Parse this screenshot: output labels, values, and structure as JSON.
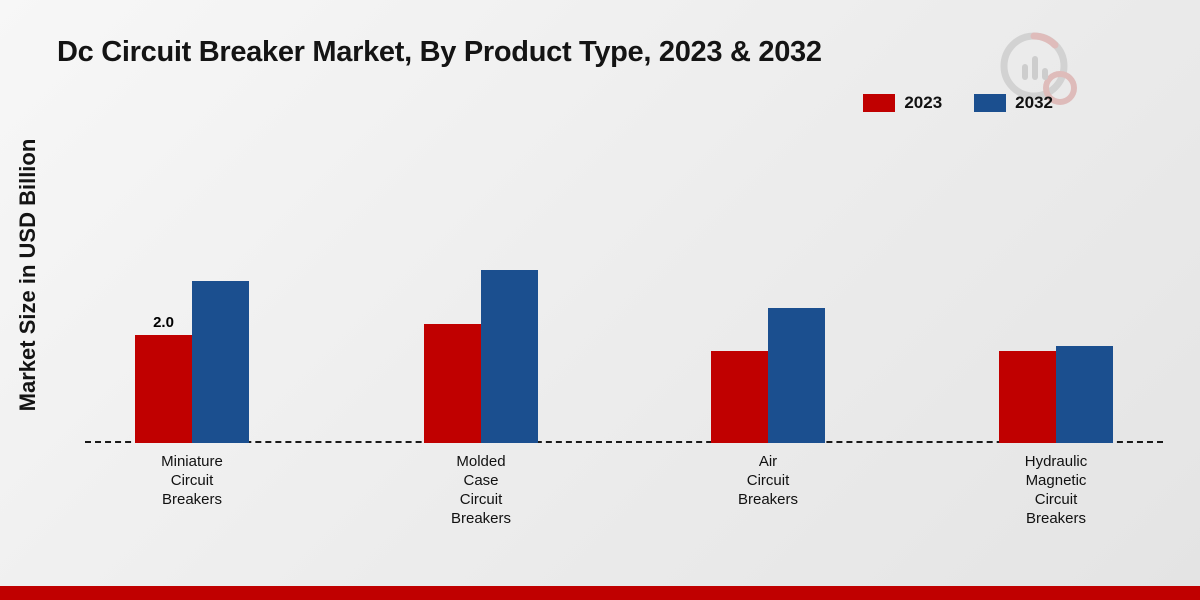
{
  "title": "Dc Circuit Breaker Market, By Product Type, 2023 & 2032",
  "y_axis_label": "Market Size in USD Billion",
  "legend": [
    {
      "label": "2023",
      "color": "#c00000"
    },
    {
      "label": "2032",
      "color": "#1b4f8f"
    }
  ],
  "colors": {
    "series_2023": "#c00000",
    "series_2032": "#1b4f8f",
    "baseline": "#1a1a1a",
    "footer_band": "#c00000"
  },
  "chart_data": {
    "type": "bar",
    "title": "Dc Circuit Breaker Market, By Product Type, 2023 & 2032",
    "xlabel": "",
    "ylabel": "Market Size in USD Billion",
    "ylim": [
      0,
      3.5
    ],
    "grid": false,
    "legend_position": "top-right",
    "categories": [
      "Miniature Circuit Breakers",
      "Molded Case Circuit Breakers",
      "Air Circuit Breakers",
      "Hydraulic Magnetic Circuit Breakers"
    ],
    "category_label_lines": [
      [
        "Miniature",
        "Circuit",
        "Breakers"
      ],
      [
        "Molded",
        "Case",
        "Circuit",
        "Breakers"
      ],
      [
        "Air",
        "Circuit",
        "Breakers"
      ],
      [
        "Hydraulic",
        "Magnetic",
        "Circuit",
        "Breakers"
      ]
    ],
    "series": [
      {
        "name": "2023",
        "color": "#c00000",
        "values": [
          2.0,
          2.2,
          1.7,
          1.7
        ]
      },
      {
        "name": "2032",
        "color": "#1b4f8f",
        "values": [
          3.0,
          3.2,
          2.5,
          1.8
        ]
      }
    ],
    "data_labels": [
      {
        "series": "2023",
        "category": "Miniature Circuit Breakers",
        "value_label": "2.0"
      }
    ]
  }
}
